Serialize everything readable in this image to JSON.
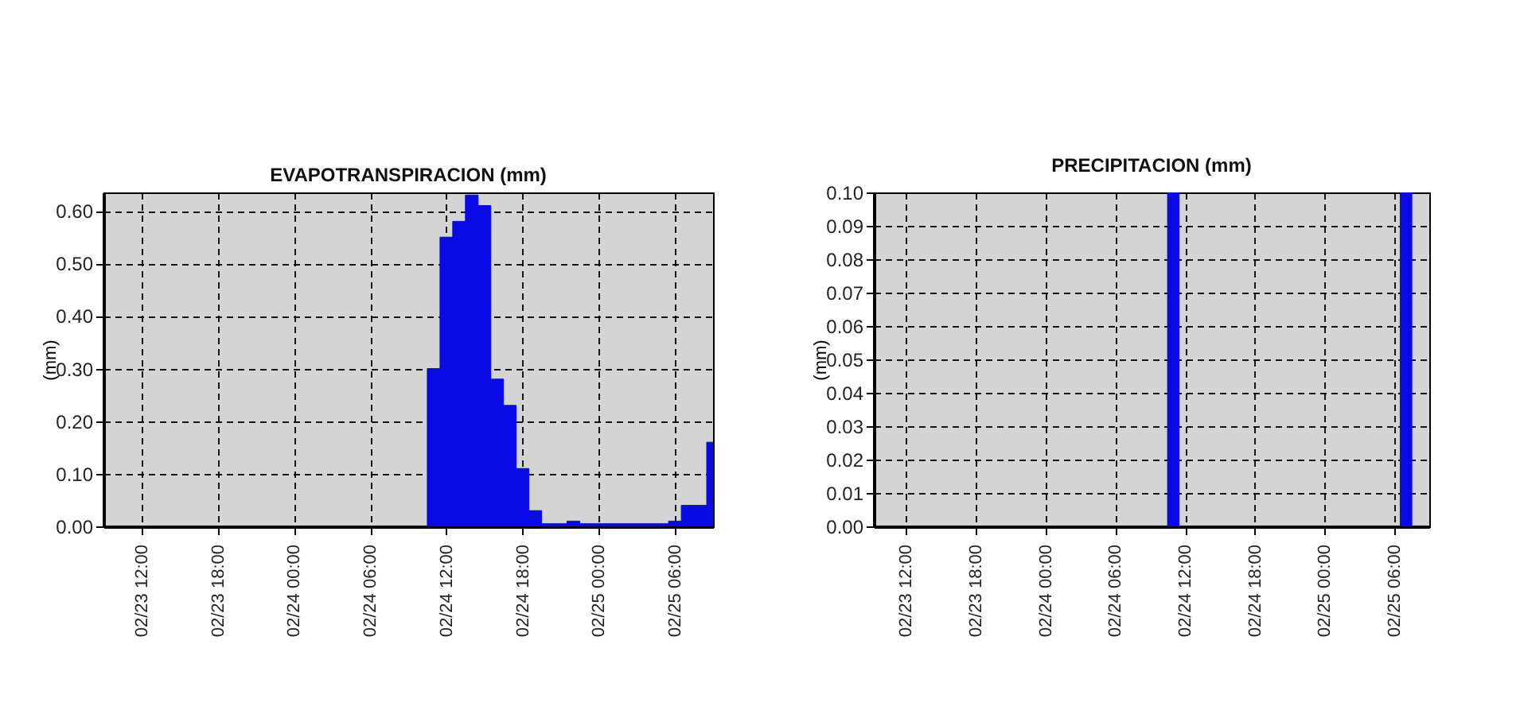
{
  "chart_data": [
    {
      "type": "bar",
      "title": "EVAPOTRANSPIRACION (mm)",
      "ylabel": "(mm)",
      "color": "#0a0ae6",
      "grid": true,
      "x": [
        "--02-24T11:00",
        "--02-24T12:00",
        "--02-24T13:00",
        "--02-24T14:00",
        "--02-24T15:00",
        "--02-24T16:00",
        "--02-24T17:00",
        "--02-24T18:00",
        "--02-24T19:00",
        "--02-24T20:00",
        "--02-24T21:00",
        "--02-24T22:00",
        "--02-24T23:00",
        "--02-25T00:00",
        "--02-25T01:00",
        "--02-25T02:00",
        "--02-25T03:00",
        "--02-25T04:00",
        "--02-25T05:00",
        "--02-25T06:00",
        "--02-25T07:00",
        "--02-25T08:00",
        "--02-25T09:00"
      ],
      "values": [
        0.3,
        0.55,
        0.58,
        0.63,
        0.61,
        0.28,
        0.23,
        0.11,
        0.03,
        0.005,
        0.005,
        0.01,
        0.005,
        0.005,
        0.005,
        0.005,
        0.005,
        0.005,
        0.005,
        0.01,
        0.04,
        0.04,
        0.16
      ],
      "xlim": [
        "--02-23T09:00",
        "--02-25T09:00"
      ],
      "xticks": [
        {
          "value": "--02-23T12:00",
          "label": "02/23 12:00"
        },
        {
          "value": "--02-23T18:00",
          "label": "02/23 18:00"
        },
        {
          "value": "--02-24T00:00",
          "label": "02/24 00:00"
        },
        {
          "value": "--02-24T06:00",
          "label": "02/24 06:00"
        },
        {
          "value": "--02-24T12:00",
          "label": "02/24 12:00"
        },
        {
          "value": "--02-24T18:00",
          "label": "02/24 18:00"
        },
        {
          "value": "--02-25T00:00",
          "label": "02/25 00:00"
        },
        {
          "value": "--02-25T06:00",
          "label": "02/25 06:00"
        }
      ],
      "ylim": [
        0,
        0.635
      ],
      "yticks": [
        {
          "value": 0,
          "label": "0.00"
        },
        {
          "value": 0.1,
          "label": "0.10"
        },
        {
          "value": 0.2,
          "label": "0.20"
        },
        {
          "value": 0.3,
          "label": "0.30"
        },
        {
          "value": 0.4,
          "label": "0.40"
        },
        {
          "value": 0.5,
          "label": "0.50"
        },
        {
          "value": 0.6,
          "label": "0.60"
        }
      ]
    },
    {
      "type": "bar",
      "title": "PRECIPITACION (mm)",
      "ylabel": "(mm)",
      "color": "#0a0ae6",
      "grid": true,
      "x": [
        "--02-24T11:00",
        "--02-25T07:00"
      ],
      "values": [
        0.1,
        0.1
      ],
      "xlim": [
        "--02-23T09:15",
        "--02-25T09:00"
      ],
      "xticks": [
        {
          "value": "--02-23T12:00",
          "label": "02/23 12:00"
        },
        {
          "value": "--02-23T18:00",
          "label": "02/23 18:00"
        },
        {
          "value": "--02-24T00:00",
          "label": "02/24 00:00"
        },
        {
          "value": "--02-24T06:00",
          "label": "02/24 06:00"
        },
        {
          "value": "--02-24T12:00",
          "label": "02/24 12:00"
        },
        {
          "value": "--02-24T18:00",
          "label": "02/24 18:00"
        },
        {
          "value": "--02-25T00:00",
          "label": "02/25 00:00"
        },
        {
          "value": "--02-25T06:00",
          "label": "02/25 06:00"
        }
      ],
      "ylim": [
        0,
        0.1
      ],
      "yticks": [
        {
          "value": 0,
          "label": "0.00"
        },
        {
          "value": 0.01,
          "label": "0.01"
        },
        {
          "value": 0.02,
          "label": "0.02"
        },
        {
          "value": 0.03,
          "label": "0.03"
        },
        {
          "value": 0.04,
          "label": "0.04"
        },
        {
          "value": 0.05,
          "label": "0.05"
        },
        {
          "value": 0.06,
          "label": "0.06"
        },
        {
          "value": 0.07,
          "label": "0.07"
        },
        {
          "value": 0.08,
          "label": "0.08"
        },
        {
          "value": 0.09,
          "label": "0.09"
        },
        {
          "value": 0.1,
          "label": "0.10"
        }
      ]
    }
  ]
}
